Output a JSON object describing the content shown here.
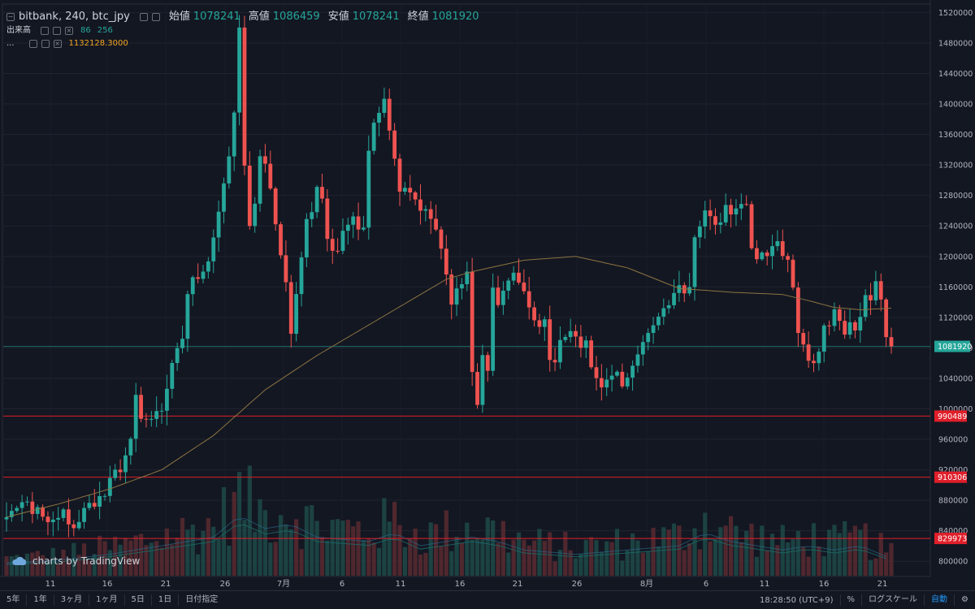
{
  "legend": {
    "symbol": "bitbank, 240, btc_jpy",
    "open_label": "始値",
    "open": "1078241",
    "high_label": "高値",
    "high": "1086459",
    "low_label": "安値",
    "low": "1078241",
    "close_label": "終値",
    "close": "1081920",
    "volume_label": "出来高",
    "volume_a": "86",
    "volume_b": "256",
    "ma_label": "...",
    "ma_value": "1132128.3000"
  },
  "watermark": "charts by TradingView",
  "toolbar": {
    "ranges": [
      "5年",
      "1年",
      "3ヶ月",
      "1ヶ月",
      "5日",
      "1日",
      "日付指定"
    ],
    "time": "18:28:50 (UTC+9)",
    "percent": "%",
    "log": "ログスケール",
    "auto": "自動"
  },
  "colors": {
    "up": "#26a69a",
    "down": "#ef5350",
    "ma": "#8d7441",
    "hline": "#e01f2a",
    "last": "#26a69a"
  },
  "chart_data": {
    "type": "candlestick",
    "xticks": [
      "11",
      "16",
      "21",
      "26",
      "7月",
      "6",
      "11",
      "16",
      "21",
      "26",
      "8月",
      "6",
      "11",
      "16",
      "21"
    ],
    "yticks": [
      800000,
      840000,
      880000,
      920000,
      960000,
      1000000,
      1040000,
      1080000,
      1120000,
      1160000,
      1200000,
      1240000,
      1280000,
      1320000,
      1360000,
      1400000,
      1440000,
      1480000,
      1520000
    ],
    "ylim": [
      780000,
      1530000
    ],
    "last_price": 1081920,
    "hlines": [
      990489,
      910306,
      829973
    ],
    "path": [
      [
        0,
        855000
      ],
      [
        4,
        875000
      ],
      [
        8,
        860000
      ],
      [
        11,
        870000
      ],
      [
        13,
        840000
      ],
      [
        15,
        875000
      ],
      [
        18,
        885000
      ],
      [
        20,
        900000
      ],
      [
        22,
        920000
      ],
      [
        24,
        960000
      ],
      [
        25,
        1010000
      ],
      [
        26,
        990000
      ],
      [
        28,
        980000
      ],
      [
        30,
        1000000
      ],
      [
        32,
        1050000
      ],
      [
        34,
        1100000
      ],
      [
        35,
        1160000
      ],
      [
        36,
        1180000
      ],
      [
        38,
        1170000
      ],
      [
        40,
        1220000
      ],
      [
        42,
        1290000
      ],
      [
        43,
        1340000
      ],
      [
        44,
        1390000
      ],
      [
        45,
        1500000
      ],
      [
        46,
        1320000
      ],
      [
        47,
        1250000
      ],
      [
        48,
        1280000
      ],
      [
        49,
        1340000
      ],
      [
        51,
        1300000
      ],
      [
        52,
        1240000
      ],
      [
        54,
        1170000
      ],
      [
        55,
        1090000
      ],
      [
        56,
        1160000
      ],
      [
        58,
        1240000
      ],
      [
        60,
        1290000
      ],
      [
        61,
        1280000
      ],
      [
        62,
        1230000
      ],
      [
        63,
        1200000
      ],
      [
        65,
        1230000
      ],
      [
        67,
        1250000
      ],
      [
        69,
        1230000
      ],
      [
        70,
        1330000
      ],
      [
        71,
        1380000
      ],
      [
        73,
        1410000
      ],
      [
        74,
        1370000
      ],
      [
        76,
        1290000
      ],
      [
        78,
        1280000
      ],
      [
        80,
        1260000
      ],
      [
        82,
        1250000
      ],
      [
        84,
        1200000
      ],
      [
        86,
        1140000
      ],
      [
        88,
        1170000
      ],
      [
        89,
        1170000
      ],
      [
        90,
        1050000
      ],
      [
        91,
        1000000
      ],
      [
        92,
        1060000
      ],
      [
        93,
        1050000
      ],
      [
        94,
        1150000
      ],
      [
        95,
        1130000
      ],
      [
        96,
        1160000
      ],
      [
        97,
        1170000
      ],
      [
        98,
        1180000
      ],
      [
        100,
        1150000
      ],
      [
        102,
        1110000
      ],
      [
        104,
        1110000
      ],
      [
        105,
        1070000
      ],
      [
        106,
        1060000
      ],
      [
        108,
        1100000
      ],
      [
        109,
        1110000
      ],
      [
        110,
        1090000
      ],
      [
        112,
        1080000
      ],
      [
        114,
        1030000
      ],
      [
        116,
        1030000
      ],
      [
        118,
        1040000
      ],
      [
        119,
        1030000
      ],
      [
        121,
        1050000
      ],
      [
        122,
        1080000
      ],
      [
        124,
        1110000
      ],
      [
        126,
        1120000
      ],
      [
        128,
        1140000
      ],
      [
        130,
        1160000
      ],
      [
        131,
        1150000
      ],
      [
        132,
        1170000
      ],
      [
        133,
        1230000
      ],
      [
        135,
        1270000
      ],
      [
        137,
        1250000
      ],
      [
        139,
        1260000
      ],
      [
        141,
        1270000
      ],
      [
        143,
        1260000
      ],
      [
        144,
        1210000
      ],
      [
        146,
        1200000
      ],
      [
        147,
        1210000
      ],
      [
        149,
        1220000
      ],
      [
        151,
        1200000
      ],
      [
        152,
        1150000
      ],
      [
        153,
        1110000
      ],
      [
        155,
        1060000
      ],
      [
        156,
        1050000
      ],
      [
        158,
        1110000
      ],
      [
        159,
        1100000
      ],
      [
        160,
        1120000
      ],
      [
        162,
        1100000
      ],
      [
        163,
        1110000
      ],
      [
        164,
        1110000
      ],
      [
        166,
        1140000
      ],
      [
        168,
        1160000
      ],
      [
        169,
        1140000
      ],
      [
        170,
        1090000
      ],
      [
        171,
        1082000
      ]
    ],
    "ma_path": [
      [
        0,
        858000
      ],
      [
        10,
        875000
      ],
      [
        20,
        895000
      ],
      [
        30,
        920000
      ],
      [
        40,
        965000
      ],
      [
        50,
        1025000
      ],
      [
        60,
        1070000
      ],
      [
        70,
        1110000
      ],
      [
        80,
        1150000
      ],
      [
        85,
        1170000
      ],
      [
        90,
        1180000
      ],
      [
        100,
        1195000
      ],
      [
        110,
        1200000
      ],
      [
        120,
        1185000
      ],
      [
        130,
        1158000
      ],
      [
        140,
        1153000
      ],
      [
        150,
        1150000
      ],
      [
        155,
        1142000
      ],
      [
        160,
        1133000
      ],
      [
        165,
        1130000
      ],
      [
        171,
        1132128
      ]
    ],
    "volume_envelope": [
      [
        0,
        0.15
      ],
      [
        10,
        0.18
      ],
      [
        20,
        0.25
      ],
      [
        30,
        0.35
      ],
      [
        40,
        0.45
      ],
      [
        45,
        0.7
      ],
      [
        50,
        0.55
      ],
      [
        55,
        0.6
      ],
      [
        60,
        0.45
      ],
      [
        70,
        0.4
      ],
      [
        75,
        0.5
      ],
      [
        80,
        0.35
      ],
      [
        90,
        0.45
      ],
      [
        95,
        0.4
      ],
      [
        100,
        0.3
      ],
      [
        110,
        0.25
      ],
      [
        120,
        0.3
      ],
      [
        130,
        0.35
      ],
      [
        135,
        0.5
      ],
      [
        140,
        0.4
      ],
      [
        150,
        0.3
      ],
      [
        155,
        0.35
      ],
      [
        160,
        0.3
      ],
      [
        165,
        0.35
      ],
      [
        171,
        0.2
      ]
    ]
  }
}
